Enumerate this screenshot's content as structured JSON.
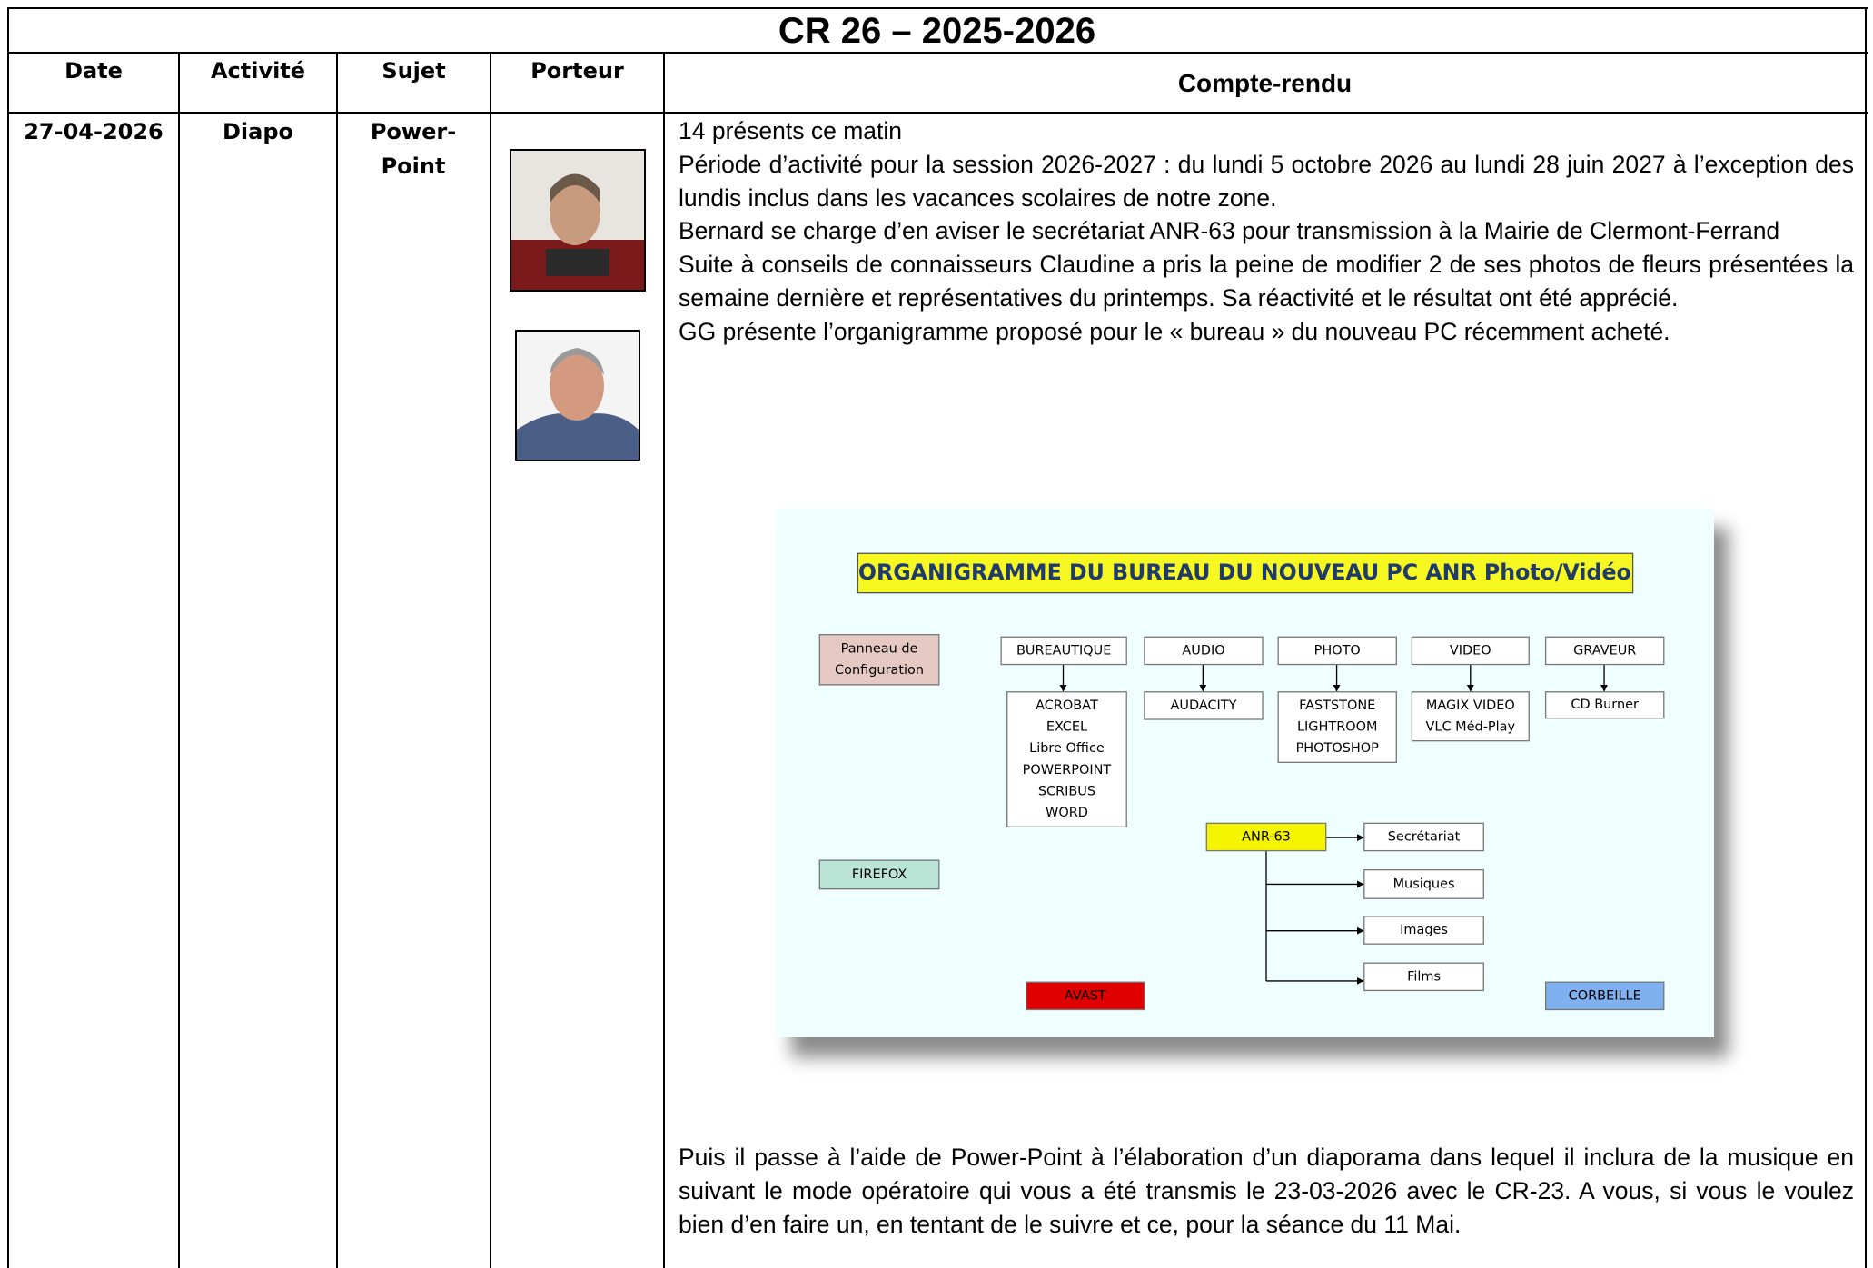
{
  "title": "CR 26 – 2025-2026",
  "table": {
    "headers": [
      "Date",
      "Activité",
      "Sujet",
      "Porteur",
      "Compte-rendu"
    ],
    "rows": [
      {
        "date": "27-04-2026",
        "activite": "Diapo",
        "sujet": "Power-Point",
        "paragraphs": [
          "14 présents ce matin",
          "Période d’activité pour la session 2026-2027 : du lundi 5 octobre 2026 au lundi 28 juin 2027 à l’exception des lundis inclus dans les vacances scolaires de notre zone.",
          "Bernard se charge d’en aviser le secrétariat ANR-63 pour transmission à la Mairie de Clermont-Ferrand",
          "Suite à conseils de connaisseurs Claudine a pris la peine de modifier 2 de ses photos de fleurs présentées la semaine dernière et représentatives du printemps. Sa réactivité et le résultat ont été apprécié.",
          "GG présente l’organigramme proposé pour le « bureau » du nouveau PC récemment acheté."
        ],
        "closing": "Puis il passe à l’aide de Power-Point à l’élaboration d’un diaporama dans lequel il inclura de la musique en suivant le mode opératoire qui vous a été transmis le 23-03-2026 avec le CR-23. A vous, si vous le voulez bien d’en faire un, en tentant de le suivre et ce, pour la séance du 11 Mai."
      }
    ]
  },
  "diagram": {
    "title": "ORGANIGRAMME DU BUREAU DU NOUVEAU PC ANR Photo/Vidéo",
    "nodes": [
      {
        "lines": [
          "Panneau de",
          "Configuration"
        ]
      },
      {
        "lines": [
          "BUREAUTIQUE"
        ]
      },
      {
        "lines": [
          "AUDIO"
        ]
      },
      {
        "lines": [
          "PHOTO"
        ]
      },
      {
        "lines": [
          "VIDEO"
        ]
      },
      {
        "lines": [
          "GRAVEUR"
        ]
      },
      {
        "lines": [
          "ACROBAT",
          "EXCEL",
          "Libre Office",
          "POWERPOINT",
          "SCRIBUS",
          "WORD"
        ]
      },
      {
        "lines": [
          "AUDACITY"
        ]
      },
      {
        "lines": [
          "FASTSTONE",
          "LIGHTROOM",
          "PHOTOSHOP"
        ]
      },
      {
        "lines": [
          "MAGIX VIDEO",
          "VLC Méd-Play"
        ]
      },
      {
        "lines": [
          "CD Burner"
        ]
      },
      {
        "lines": [
          "ANR-63"
        ]
      },
      {
        "lines": [
          "Secrétariat"
        ]
      },
      {
        "lines": [
          "Musiques"
        ]
      },
      {
        "lines": [
          "Images"
        ]
      },
      {
        "lines": [
          "Films"
        ]
      },
      {
        "lines": [
          "FIREFOX"
        ]
      },
      {
        "lines": [
          "AVAST"
        ]
      },
      {
        "lines": [
          "CORBEILLE"
        ]
      }
    ]
  }
}
